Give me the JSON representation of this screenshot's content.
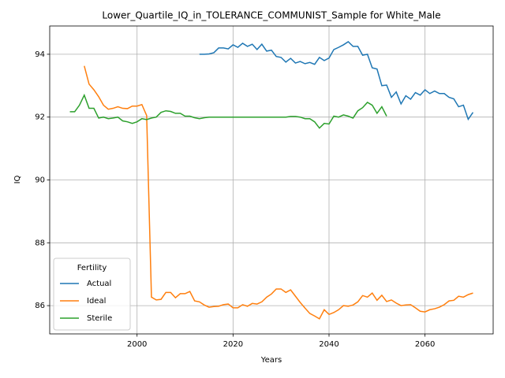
{
  "chart_data": {
    "type": "line",
    "title": "Lower_Quartile_IQ_in_TOLERANCE_COMMUNIST_Sample for White_Male",
    "xlabel": "Years",
    "ylabel": "IQ",
    "x": [
      1986,
      1987,
      1988,
      1989,
      1990,
      1991,
      1992,
      1993,
      1994,
      1995,
      1996,
      1997,
      1998,
      1999,
      2000,
      2001,
      2002,
      2003,
      2004,
      2005,
      2006,
      2007,
      2008,
      2009,
      2010,
      2011,
      2012,
      2013,
      2014,
      2015,
      2016,
      2017,
      2018,
      2019,
      2020,
      2021,
      2022,
      2023,
      2024,
      2025,
      2026,
      2027,
      2028,
      2029,
      2030,
      2031,
      2032,
      2033,
      2034,
      2035,
      2036,
      2037,
      2038,
      2039,
      2040,
      2041,
      2042,
      2043,
      2044,
      2045,
      2046,
      2047,
      2048,
      2049,
      2050,
      2051,
      2052,
      2053,
      2054,
      2055,
      2056,
      2057,
      2058,
      2059,
      2060,
      2061,
      2062,
      2063,
      2064,
      2065,
      2066,
      2067,
      2068,
      2069,
      2070
    ],
    "series": [
      {
        "name": "Actual",
        "color": "#1f77b4",
        "values": [
          null,
          null,
          null,
          null,
          null,
          null,
          null,
          null,
          null,
          null,
          null,
          null,
          null,
          null,
          null,
          null,
          null,
          null,
          null,
          null,
          null,
          null,
          null,
          null,
          null,
          null,
          null,
          94.0,
          94.0,
          94.01,
          94.05,
          94.2,
          94.2,
          94.17,
          94.3,
          94.22,
          94.35,
          94.25,
          94.32,
          94.15,
          94.32,
          94.1,
          94.13,
          93.93,
          93.9,
          93.75,
          93.87,
          93.72,
          93.77,
          93.7,
          93.74,
          93.68,
          93.9,
          93.8,
          93.88,
          94.15,
          94.22,
          94.3,
          94.4,
          94.25,
          94.25,
          93.97,
          94.0,
          93.57,
          93.53,
          93.0,
          93.02,
          92.63,
          92.8,
          92.42,
          92.68,
          92.57,
          92.78,
          92.7,
          92.87,
          92.75,
          92.83,
          92.75,
          92.75,
          92.63,
          92.58,
          92.33,
          92.38,
          91.93,
          92.15
        ]
      },
      {
        "name": "Ideal",
        "color": "#ff7f0e",
        "values": [
          null,
          null,
          null,
          93.63,
          93.05,
          92.87,
          92.65,
          92.38,
          92.25,
          92.28,
          92.33,
          92.28,
          92.27,
          92.35,
          92.35,
          92.4,
          92.05,
          86.27,
          86.18,
          86.2,
          86.42,
          86.42,
          86.25,
          86.38,
          86.38,
          86.45,
          86.15,
          86.12,
          86.02,
          85.95,
          85.97,
          85.98,
          86.03,
          86.05,
          85.93,
          85.93,
          86.03,
          85.98,
          86.07,
          86.05,
          86.12,
          86.27,
          86.37,
          86.53,
          86.53,
          86.42,
          86.5,
          86.3,
          86.1,
          85.92,
          85.75,
          85.67,
          85.58,
          85.87,
          85.72,
          85.78,
          85.87,
          86.0,
          85.98,
          86.02,
          86.12,
          86.32,
          86.27,
          86.4,
          86.17,
          86.33,
          86.13,
          86.18,
          86.08,
          86.0,
          86.02,
          86.03,
          85.93,
          85.82,
          85.8,
          85.87,
          85.9,
          85.95,
          86.03,
          86.15,
          86.17,
          86.3,
          86.27,
          86.35,
          86.4
        ]
      },
      {
        "name": "Sterile",
        "color": "#2ca02c",
        "values": [
          92.17,
          92.17,
          92.38,
          92.7,
          92.28,
          92.28,
          91.97,
          92.0,
          91.95,
          91.97,
          92.0,
          91.88,
          91.85,
          91.8,
          91.85,
          91.95,
          91.92,
          91.97,
          92.0,
          92.15,
          92.2,
          92.18,
          92.12,
          92.12,
          92.03,
          92.03,
          91.98,
          91.95,
          91.98,
          92.0,
          92.0,
          92.0,
          92.0,
          92.0,
          92.0,
          92.0,
          92.0,
          92.0,
          92.0,
          92.0,
          92.0,
          92.0,
          92.0,
          92.0,
          92.0,
          92.0,
          92.02,
          92.02,
          92.0,
          91.95,
          91.95,
          91.85,
          91.65,
          91.8,
          91.78,
          92.03,
          92.0,
          92.07,
          92.03,
          91.97,
          92.2,
          92.3,
          92.47,
          92.38,
          92.12,
          92.33,
          92.03,
          null,
          null,
          null,
          null,
          null,
          null,
          null,
          null,
          null,
          null,
          null,
          null,
          null,
          null,
          null,
          null,
          null,
          null
        ]
      }
    ],
    "xlim": [
      1981.8,
      2074.2
    ],
    "xticks": [
      2000,
      2020,
      2040,
      2060
    ],
    "ylim": [
      85.1,
      94.9
    ],
    "yticks": [
      86,
      88,
      90,
      92,
      94
    ],
    "grid": true,
    "legend_title": "Fertility",
    "legend_loc": "lower left"
  }
}
